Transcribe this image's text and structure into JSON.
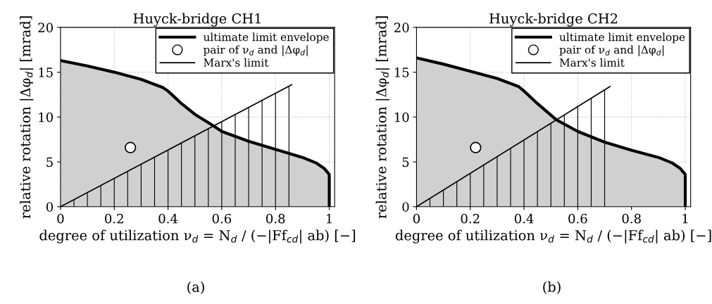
{
  "chart_data": [
    {
      "type": "line",
      "title": "Huyck-bridge CH1",
      "xlabel": "degree of utilization ν$_{d}$ = N$_{d}$ / (−|Ff$_{cd}$| ab) [−]",
      "ylabel": "relative rotation |Δφ$_{d}$| [mrad]",
      "xlim": [
        0,
        1.02
      ],
      "xticks": [
        0,
        0.2,
        0.4,
        0.6,
        0.8,
        1
      ],
      "ylim": [
        0,
        20
      ],
      "yticks": [
        0,
        5,
        10,
        15,
        20
      ],
      "grid": true,
      "legend": "top right",
      "annotations": [
        "(a)"
      ],
      "series": [
        {
          "type": "bar",
          "color": "#000000",
          "x": [
            0.05,
            0.1,
            0.15,
            0.2,
            0.25,
            0.3,
            0.35,
            0.4,
            0.45,
            0.5,
            0.55,
            0.6,
            0.65,
            0.7,
            0.75,
            0.8,
            0.85
          ],
          "values": [
            0.8,
            1.6,
            2.4,
            3.2,
            4.0,
            4.7,
            5.5,
            6.3,
            7.1,
            7.9,
            8.7,
            9.5,
            10.3,
            11.1,
            11.9,
            12.6,
            13.4
          ]
        },
        {
          "type": "area",
          "name": "ultimate limit envelope",
          "color": "#000000",
          "x": [
            0,
            0.1,
            0.2,
            0.3,
            0.38,
            0.4,
            0.45,
            0.5,
            0.57,
            0.6,
            0.7,
            0.8,
            0.9,
            0.95,
            0.98,
            1.0,
            1.0
          ],
          "values": [
            16.3,
            15.7,
            15.0,
            14.2,
            13.3,
            12.9,
            11.5,
            10.3,
            9.0,
            8.4,
            7.3,
            6.4,
            5.5,
            4.9,
            4.3,
            3.6,
            0
          ]
        },
        {
          "type": "scatter",
          "name": "pair of ν$_{d}$ and |Δφ$_{d}$|",
          "color": "#ffffff",
          "x": [
            0.26
          ],
          "values": [
            6.6
          ]
        },
        {
          "type": "line",
          "name": "Marx's limit",
          "color": "#000000",
          "x": [
            0,
            0.86
          ],
          "values": [
            0,
            13.6
          ]
        }
      ]
    },
    {
      "type": "line",
      "title": "Huyck-bridge CH2",
      "xlabel": "degree of utilization ν$_{d}$ = N$_{d}$ / (−|Ff$_{cd}$| ab) [−]",
      "ylabel": "relative rotation |Δφ$_{d}$| [mrad]",
      "xlim": [
        0,
        1.02
      ],
      "xticks": [
        0,
        0.2,
        0.4,
        0.6,
        0.8,
        1
      ],
      "ylim": [
        0,
        20
      ],
      "yticks": [
        0,
        5,
        10,
        15,
        20
      ],
      "grid": true,
      "legend": "top right",
      "annotations": [
        "(b)"
      ],
      "series": [
        {
          "type": "bar",
          "color": "#000000",
          "x": [
            0.05,
            0.1,
            0.15,
            0.2,
            0.25,
            0.3,
            0.35,
            0.4,
            0.45,
            0.5,
            0.55,
            0.6,
            0.65,
            0.7
          ],
          "values": [
            0.9,
            1.9,
            2.8,
            3.7,
            4.7,
            5.6,
            6.5,
            7.4,
            8.4,
            9.3,
            10.2,
            11.2,
            12.1,
            13.0
          ]
        },
        {
          "type": "area",
          "name": "ultimate limit envelope",
          "color": "#000000",
          "x": [
            0,
            0.1,
            0.2,
            0.3,
            0.38,
            0.4,
            0.45,
            0.52,
            0.6,
            0.7,
            0.8,
            0.9,
            0.95,
            0.98,
            1.0,
            1.0
          ],
          "values": [
            16.6,
            15.9,
            15.1,
            14.3,
            13.4,
            12.9,
            11.5,
            9.7,
            8.4,
            7.2,
            6.3,
            5.5,
            4.9,
            4.3,
            3.6,
            0
          ]
        },
        {
          "type": "scatter",
          "name": "pair of ν$_{d}$ and |Δφ$_{d}$|",
          "color": "#ffffff",
          "x": [
            0.22
          ],
          "values": [
            6.6
          ]
        },
        {
          "name": "Marx's limit",
          "color": "#000000",
          "x": [
            0,
            0.72
          ],
          "values": [
            0,
            13.4
          ]
        }
      ]
    }
  ]
}
